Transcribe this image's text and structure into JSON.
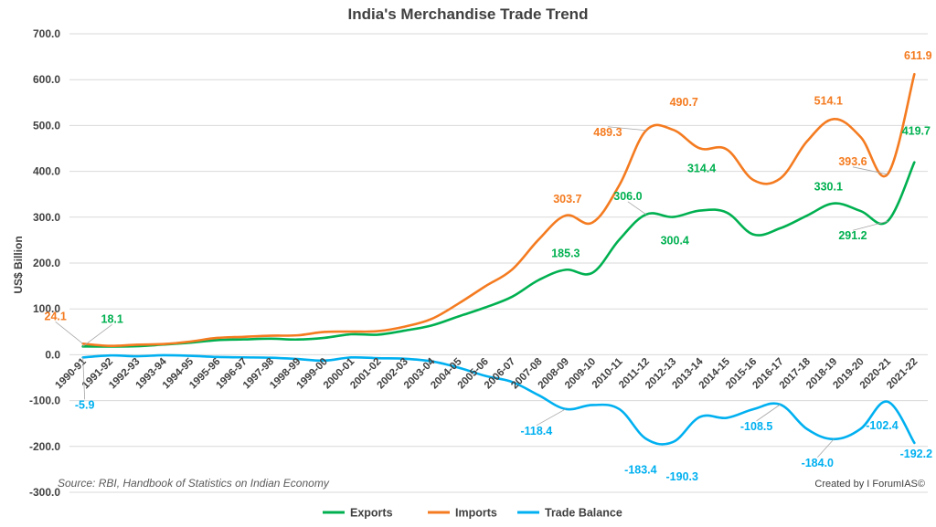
{
  "colors": {
    "exports": "#00b050",
    "imports": "#f47b20",
    "balance": "#00b0f0",
    "text": "#404040",
    "grid": "#d9d9d9"
  },
  "source_note": "Source: RBI, Handbook of Statistics on Indian Economy",
  "credit": "Created by I ForumIAS©",
  "chart_data": {
    "type": "line",
    "title": "India's Merchandise Trade Trend",
    "xlabel": "",
    "ylabel": "US$ Billion",
    "ylim": [
      -300,
      700
    ],
    "yticks": [
      700,
      600,
      500,
      400,
      300,
      200,
      100,
      0,
      -100,
      -200,
      -300
    ],
    "ytick_labels": [
      "700.0",
      "600.0",
      "500.0",
      "400.0",
      "300.0",
      "200.0",
      "100.0",
      "0.0",
      "-100.0",
      "-200.0",
      "-300.0"
    ],
    "grid": true,
    "legend": "bottom",
    "categories": [
      "1990-91",
      "1991-92",
      "1992-93",
      "1993-94",
      "1994-95",
      "1995-96",
      "1996-97",
      "1997-98",
      "1998-99",
      "1999-00",
      "2000-01",
      "2001-02",
      "2002-03",
      "2003-04",
      "2004-05",
      "2005-06",
      "2006-07",
      "2007-08",
      "2008-09",
      "2009-10",
      "2010-11",
      "2011-12",
      "2012-13",
      "2013-14",
      "2014-15",
      "2015-16",
      "2016-17",
      "2017-18",
      "2018-19",
      "2019-20",
      "2020-21",
      "2021-22"
    ],
    "series": [
      {
        "name": "Exports",
        "key": "exports",
        "values": [
          18.1,
          17.9,
          18.5,
          22.2,
          26.3,
          31.8,
          33.5,
          35.0,
          33.2,
          36.8,
          44.6,
          43.8,
          52.7,
          63.8,
          83.5,
          103.1,
          126.4,
          163.1,
          185.3,
          178.8,
          251.1,
          306.0,
          300.4,
          314.4,
          310.3,
          262.3,
          275.9,
          303.5,
          330.1,
          313.4,
          291.2,
          419.7
        ],
        "labels": [
          {
            "index": 0,
            "text": "18.1",
            "dx": 32,
            "dy": -26,
            "leader": true
          },
          {
            "index": 18,
            "text": "185.3",
            "dx": 0,
            "dy": -14,
            "leader": false
          },
          {
            "index": 21,
            "text": "306.0",
            "dx": -20,
            "dy": -16,
            "leader": true
          },
          {
            "index": 22,
            "text": "300.4",
            "dx": 2,
            "dy": 30,
            "leader": false
          },
          {
            "index": 23,
            "text": "314.4",
            "dx": 2,
            "dy": -42,
            "leader": false
          },
          {
            "index": 28,
            "text": "330.1",
            "dx": -6,
            "dy": -14,
            "leader": false
          },
          {
            "index": 30,
            "text": "291.2",
            "dx": -38,
            "dy": 20,
            "leader": true
          },
          {
            "index": 31,
            "text": "419.7",
            "dx": 2,
            "dy": -30,
            "leader": false
          }
        ]
      },
      {
        "name": "Imports",
        "key": "imports",
        "values": [
          24.1,
          19.4,
          21.9,
          23.3,
          28.7,
          36.7,
          39.1,
          41.5,
          42.4,
          49.7,
          50.5,
          51.4,
          61.4,
          78.1,
          111.5,
          149.2,
          185.7,
          251.7,
          303.7,
          288.4,
          369.8,
          489.3,
          490.7,
          450.2,
          448.0,
          381.0,
          384.4,
          465.6,
          514.1,
          474.7,
          393.6,
          611.9
        ],
        "labels": [
          {
            "index": 0,
            "text": "24.1",
            "dx": -30,
            "dy": -26,
            "leader": true
          },
          {
            "index": 18,
            "text": "303.7",
            "dx": 2,
            "dy": -14,
            "leader": false
          },
          {
            "index": 21,
            "text": "489.3",
            "dx": -42,
            "dy": 6,
            "leader": true
          },
          {
            "index": 22,
            "text": "490.7",
            "dx": 12,
            "dy": -26,
            "leader": false
          },
          {
            "index": 28,
            "text": "514.1",
            "dx": -6,
            "dy": -16,
            "leader": false
          },
          {
            "index": 30,
            "text": "393.6",
            "dx": -38,
            "dy": -10,
            "leader": true
          },
          {
            "index": 31,
            "text": "611.9",
            "dx": 4,
            "dy": -16,
            "leader": false
          }
        ]
      },
      {
        "name": "Trade Balance",
        "key": "balance",
        "values": [
          -5.9,
          -1.5,
          -3.3,
          -1.1,
          -2.3,
          -4.9,
          -5.7,
          -6.5,
          -9.2,
          -12.8,
          -5.9,
          -7.6,
          -8.7,
          -14.3,
          -28.0,
          -46.1,
          -59.3,
          -88.5,
          -118.4,
          -109.6,
          -118.6,
          -183.4,
          -190.3,
          -135.8,
          -137.7,
          -118.7,
          -108.5,
          -162.1,
          -184.0,
          -161.4,
          -102.4,
          -192.2
        ],
        "labels": [
          {
            "index": 0,
            "text": "-5.9",
            "dx": 2,
            "dy": 56,
            "leader": true
          },
          {
            "index": 18,
            "text": "-118.4",
            "dx": -32,
            "dy": 28,
            "leader": true
          },
          {
            "index": 21,
            "text": "-183.4",
            "dx": -6,
            "dy": 38,
            "leader": false
          },
          {
            "index": 22,
            "text": "-190.3",
            "dx": 10,
            "dy": 42,
            "leader": false
          },
          {
            "index": 26,
            "text": "-108.5",
            "dx": -26,
            "dy": 28,
            "leader": true
          },
          {
            "index": 28,
            "text": "-184.0",
            "dx": -18,
            "dy": 30,
            "leader": true
          },
          {
            "index": 30,
            "text": "-102.4",
            "dx": -6,
            "dy": 30,
            "leader": false
          },
          {
            "index": 31,
            "text": "-192.2",
            "dx": 2,
            "dy": 16,
            "leader": false
          }
        ]
      }
    ]
  }
}
